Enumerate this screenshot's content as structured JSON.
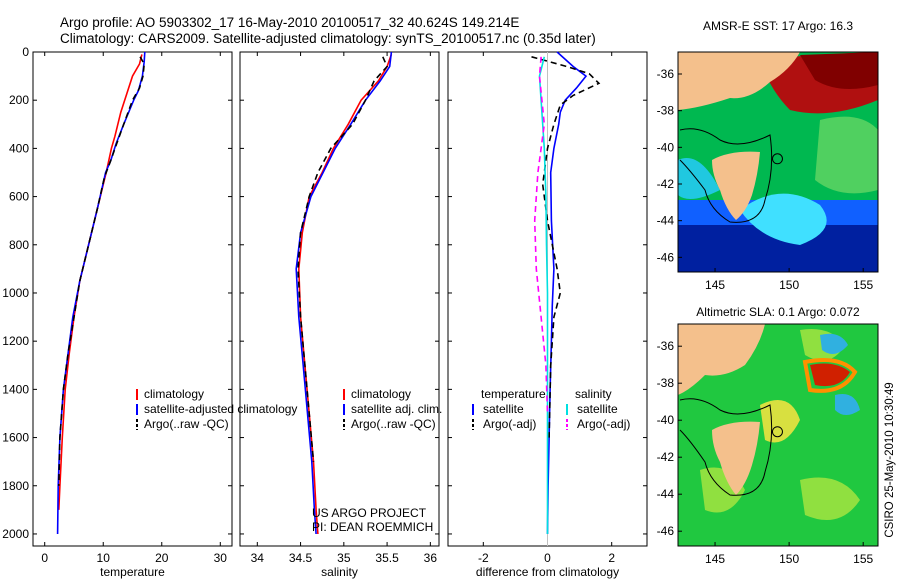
{
  "header": {
    "title_line1": "Argo profile: AO 5903302_17 16-May-2010 20100517_32 40.624S 149.214E",
    "title_line2": "Climatology: CARS2009. Satellite-adjusted climatology: synTS_20100517.nc (0.35d later)"
  },
  "chart_data": [
    {
      "type": "line",
      "panel": "temperature",
      "xlabel": "temperature",
      "ylabel": "",
      "xlim": [
        -2,
        32
      ],
      "ylim": [
        2050,
        0
      ],
      "y_axis": "depth (inverted)",
      "xticks": [
        0,
        10,
        20,
        30
      ],
      "yticks": [
        0,
        200,
        400,
        600,
        800,
        1000,
        1200,
        1400,
        1600,
        1800,
        2000
      ],
      "legend": {
        "placement": "lower-right",
        "entries": [
          {
            "label": "climatology",
            "color": "#ff0000"
          },
          {
            "label": "satellite-adjusted climatology",
            "color": "#0000ff"
          },
          {
            "label": "Argo(..raw -QC)",
            "color": "#000000",
            "dash": true
          }
        ]
      },
      "series": [
        {
          "name": "climatology",
          "color": "#ff0000",
          "dash": false,
          "x": [
            16.6,
            16.2,
            15.0,
            14.2,
            13.0,
            12.0,
            11.4,
            10.5,
            9.0,
            7.5,
            6.0,
            5.0,
            4.2,
            3.5,
            3.0,
            2.6,
            2.4
          ],
          "y": [
            10,
            50,
            100,
            160,
            250,
            350,
            400,
            500,
            650,
            800,
            950,
            1100,
            1250,
            1400,
            1600,
            1800,
            1900
          ]
        },
        {
          "name": "satellite-adjusted climatology",
          "color": "#0000ff",
          "dash": false,
          "x": [
            17.1,
            17.0,
            16.7,
            16.0,
            15.2,
            13.5,
            12.2,
            11.3,
            10.4,
            9.0,
            7.5,
            6.0,
            4.8,
            4.0,
            3.2,
            2.6,
            2.3,
            2.2
          ],
          "y": [
            0,
            40,
            100,
            160,
            200,
            300,
            380,
            450,
            500,
            650,
            800,
            950,
            1100,
            1250,
            1400,
            1600,
            1800,
            2000
          ]
        },
        {
          "name": "Argo(..raw -QC)",
          "color": "#000000",
          "dash": true,
          "x": [
            16.3,
            17.0,
            16.8,
            16.2,
            15.0,
            13.5,
            12.3,
            11.3,
            10.2,
            9.0,
            7.5,
            6.0,
            5.0,
            4.0,
            3.2,
            2.6,
            2.4
          ],
          "y": [
            20,
            50,
            100,
            150,
            200,
            300,
            380,
            450,
            520,
            650,
            800,
            950,
            1100,
            1250,
            1400,
            1600,
            1800
          ]
        }
      ]
    },
    {
      "type": "line",
      "panel": "salinity",
      "xlabel": "salinity",
      "ylabel": "",
      "xlim": [
        33.8,
        36.1
      ],
      "ylim": [
        2050,
        0
      ],
      "y_axis": "depth (inverted)",
      "xticks": [
        34,
        34.5,
        35,
        35.5,
        36
      ],
      "legend": {
        "placement": "lower-right",
        "entries": [
          {
            "label": "climatology",
            "color": "#ff0000"
          },
          {
            "label": "satellite adj. clim.",
            "color": "#0000ff"
          },
          {
            "label": "Argo(..raw -QC)",
            "color": "#000000",
            "dash": true
          }
        ]
      },
      "annotations": [
        "US ARGO PROJECT",
        "PI: DEAN ROEMMICH"
      ],
      "series": [
        {
          "name": "climatology",
          "color": "#ff0000",
          "dash": false,
          "x": [
            35.55,
            35.5,
            35.4,
            35.2,
            35.05,
            34.88,
            34.75,
            34.6,
            34.52,
            34.48,
            34.5,
            34.55,
            34.6,
            34.65,
            34.68,
            34.7
          ],
          "y": [
            10,
            60,
            120,
            200,
            300,
            400,
            500,
            600,
            750,
            900,
            1100,
            1300,
            1500,
            1700,
            1900,
            2000
          ]
        },
        {
          "name": "satellite adj. clim.",
          "color": "#0000ff",
          "dash": false,
          "x": [
            35.55,
            35.53,
            35.42,
            35.25,
            35.08,
            34.9,
            34.76,
            34.62,
            34.5,
            34.45,
            34.48,
            34.53,
            34.58,
            34.63,
            34.66,
            34.68
          ],
          "y": [
            0,
            60,
            120,
            200,
            300,
            400,
            500,
            600,
            750,
            900,
            1100,
            1300,
            1500,
            1700,
            1900,
            2000
          ]
        },
        {
          "name": "Argo(..raw -QC)",
          "color": "#000000",
          "dash": true,
          "x": [
            35.45,
            35.5,
            35.35,
            35.25,
            35.1,
            34.85,
            34.7,
            34.6,
            34.5,
            34.47,
            34.5,
            34.55,
            34.6,
            34.65
          ],
          "y": [
            20,
            60,
            120,
            200,
            300,
            400,
            500,
            600,
            750,
            900,
            1100,
            1300,
            1500,
            1700
          ]
        }
      ]
    },
    {
      "type": "line",
      "panel": "difference",
      "xlabel": "difference from climatology",
      "ylabel": "",
      "xlim": [
        -3.1,
        3.1
      ],
      "ylim": [
        2050,
        0
      ],
      "y_axis": "depth (inverted)",
      "xticks": [
        -2,
        0,
        2
      ],
      "legend": {
        "placement": "lower-center",
        "groups": [
          {
            "title": "temperature",
            "entries": [
              {
                "label": "satellite",
                "color": "#0000ff"
              },
              {
                "label": "Argo(-adj)",
                "color": "#000000",
                "dash": true
              }
            ]
          },
          {
            "title": "salinity",
            "entries": [
              {
                "label": "satellite",
                "color": "#00e0e0"
              },
              {
                "label": "Argo(-adj)",
                "color": "#ff00ff",
                "dash": true
              }
            ]
          }
        ]
      },
      "series": [
        {
          "name": "temperature satellite",
          "color": "#0000ff",
          "dash": false,
          "x": [
            0.3,
            0.8,
            1.2,
            0.9,
            0.55,
            0.4,
            0.35,
            0.2,
            0.1,
            0.12,
            0.2,
            0.15,
            0.12,
            0.08,
            0.05,
            0.02,
            0.0
          ],
          "y": [
            0,
            60,
            100,
            150,
            200,
            250,
            300,
            400,
            500,
            700,
            900,
            1050,
            1200,
            1400,
            1600,
            1800,
            2000
          ]
        },
        {
          "name": "temperature Argo(-adj)",
          "color": "#000000",
          "dash": true,
          "x": [
            -0.5,
            0.6,
            1.3,
            1.6,
            0.8,
            0.4,
            0.2,
            0.0,
            -0.15,
            0.0,
            0.3,
            0.4,
            0.2,
            0.1,
            0.05
          ],
          "y": [
            20,
            60,
            90,
            130,
            180,
            220,
            300,
            400,
            550,
            700,
            900,
            1000,
            1100,
            1300,
            1600
          ]
        },
        {
          "name": "salinity satellite",
          "color": "#00e0e0",
          "dash": false,
          "x": [
            -0.1,
            -0.25,
            -0.2,
            -0.15,
            -0.1,
            -0.05,
            -0.03,
            0.0,
            0.0,
            0.0,
            0.0,
            0.0
          ],
          "y": [
            20,
            100,
            200,
            300,
            400,
            600,
            800,
            1000,
            1300,
            1600,
            1800,
            2000
          ]
        },
        {
          "name": "salinity Argo(-adj)",
          "color": "#ff00ff",
          "dash": true,
          "x": [
            -0.2,
            -0.25,
            -0.1,
            -0.3,
            -0.4,
            -0.35,
            -0.2,
            -0.05,
            0.0
          ],
          "y": [
            20,
            100,
            300,
            500,
            700,
            900,
            1100,
            1300,
            1500
          ]
        }
      ]
    },
    {
      "type": "heatmap",
      "panel": "sst-map",
      "title": "AMSR-E SST: 17 Argo: 16.3",
      "xlim": [
        142.5,
        156
      ],
      "ylim": [
        -46.8,
        -34.8
      ],
      "xticks": [
        145,
        150,
        155
      ],
      "yticks": [
        -36,
        -38,
        -40,
        -42,
        -44,
        -46
      ],
      "argo_position": {
        "lon": 149.214,
        "lat": -40.624
      }
    },
    {
      "type": "heatmap",
      "panel": "sla-map",
      "title": "Altimetric SLA: 0.1 Argo: 0.072",
      "xlim": [
        142.5,
        156
      ],
      "ylim": [
        -46.8,
        -34.8
      ],
      "xticks": [
        145,
        150,
        155
      ],
      "yticks": [
        -36,
        -38,
        -40,
        -42,
        -44,
        -46
      ],
      "argo_position": {
        "lon": 149.214,
        "lat": -40.624
      }
    }
  ],
  "footer": {
    "credit": "CSIRO 25-May-2010 10:30:49"
  },
  "colors": {
    "land": "#f4c08c",
    "climatology": "#ff0000",
    "satellite": "#0000ff",
    "argo": "#000000",
    "salinity_satellite": "#00e0e0",
    "salinity_argo": "#ff00ff"
  }
}
